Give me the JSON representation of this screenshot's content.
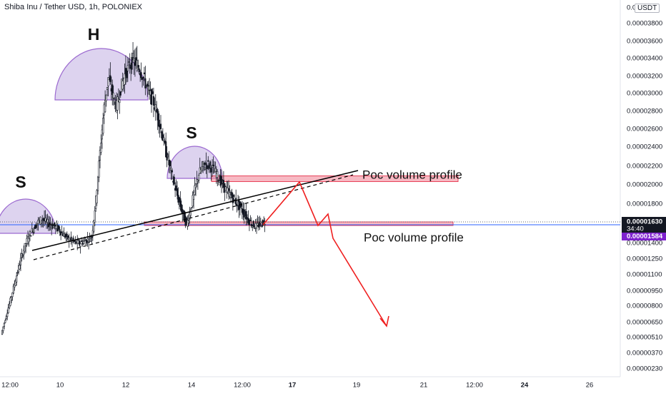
{
  "header": {
    "title": "Shiba Inu / Tether USD, 1h, POLONIEX",
    "currency_button": "USDT"
  },
  "colors": {
    "candle_dark": "#131722",
    "shoulder_fill": "#d1c4e9",
    "shoulder_stroke": "#9c6ad0",
    "poc_band": "#f28b9b",
    "poc_border": "#e8435a",
    "arrow_red": "#ef1f1f",
    "trend_line": "#000000",
    "last_price_bg": "#131722",
    "prev_close_bg": "#7e22ce",
    "current_line": "#2962ff"
  },
  "chart_data": {
    "type": "candlestick",
    "title": "Shiba Inu / Tether USD, 1h, POLONIEX",
    "y_ticks": [
      "0.00003800",
      "0.00003600",
      "0.00003400",
      "0.00003200",
      "0.00003000",
      "0.00002800",
      "0.00002600",
      "0.00002400",
      "0.00002200",
      "0.00002000",
      "0.00001800",
      "0.00001630",
      "0.00001584",
      "0.00001400",
      "0.00001250",
      "0.00001100",
      "0.00000950",
      "0.00000800",
      "0.00000650",
      "0.00000510",
      "0.00000370",
      "0.00000230"
    ],
    "y_top_label": "0.0",
    "x_ticks": [
      "12:00",
      "10",
      "12",
      "14",
      "12:00",
      "17",
      "19",
      "21",
      "12:00",
      "24",
      "26"
    ],
    "last_price": {
      "value": "0.00001630",
      "countdown": "34:40"
    },
    "prev_price": {
      "value": "0.00001584"
    },
    "close_series": [
      5.4e-06,
      6.8e-06,
      8.2e-06,
      9.8e-06,
      1.13e-05,
      1.28e-05,
      1.4e-05,
      1.5e-05,
      1.57e-05,
      1.63e-05,
      1.66e-05,
      1.62e-05,
      1.6e-05,
      1.58e-05,
      1.55e-05,
      1.5e-05,
      1.46e-05,
      1.43e-05,
      1.41e-05,
      1.4e-05,
      1.42e-05,
      1.44e-05,
      1.47e-05,
      1.85e-05,
      2.35e-05,
      2.85e-05,
      3.18e-05,
      3e-05,
      2.85e-05,
      3.05e-05,
      3.22e-05,
      3.3e-05,
      3.38e-05,
      3.33e-05,
      3.25e-05,
      3.12e-05,
      3e-05,
      2.9e-05,
      2.75e-05,
      2.55e-05,
      2.35e-05,
      2.18e-05,
      2e-05,
      1.85e-05,
      1.72e-05,
      1.6e-05,
      1.75e-05,
      1.95e-05,
      2.12e-05,
      2.2e-05,
      2.22e-05,
      2.19e-05,
      2.13e-05,
      2.06e-05,
      1.98e-05,
      1.93e-05,
      1.87e-05,
      1.82e-05,
      1.77e-05,
      1.71e-05,
      1.65e-05,
      1.6e-05,
      1.58e-05,
      1.61e-05,
      1.63e-05
    ],
    "patterns": [
      {
        "label": "S",
        "kind": "left-shoulder"
      },
      {
        "label": "H",
        "kind": "head"
      },
      {
        "label": "S",
        "kind": "right-shoulder"
      }
    ],
    "annotations": [
      {
        "text": "Poc volume profile",
        "level": 2.05e-05
      },
      {
        "text": "Poc volume profile",
        "level": 1.63e-05
      }
    ]
  }
}
